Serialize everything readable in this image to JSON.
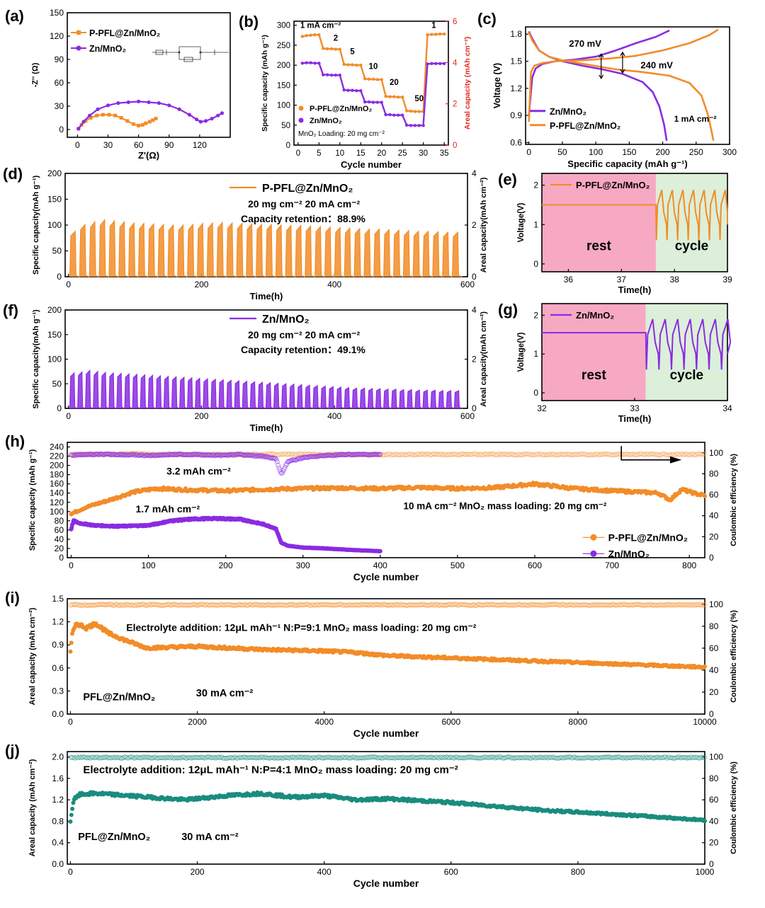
{
  "colors": {
    "orange": "#f28c28",
    "purple": "#8a2be2",
    "teal": "#1a8c7e",
    "red": "#e0271f",
    "rest": "#f7a9c3",
    "cycle": "#dcefd9",
    "axis": "#000000"
  },
  "chart_data": [
    {
      "id": "a",
      "label": "(a)",
      "type": "line",
      "xlabel": "Z'(Ω)",
      "ylabel": "-Z'' (Ω)",
      "xlim": [
        -10,
        150
      ],
      "ylim": [
        -10,
        150
      ],
      "xticks": [
        0,
        30,
        60,
        90,
        120
      ],
      "yticks": [
        0,
        30,
        60,
        90,
        120,
        150
      ],
      "legend": [
        "P-PFL@Zn/MnO₂",
        "Zn/MnO₂"
      ],
      "inset": "equivalent circuit: Rs, CPE, Rct, Wo",
      "series": [
        {
          "name": "P-PFL@Zn/MnO₂",
          "color": "orange",
          "marker": "square",
          "x": [
            1,
            4,
            8,
            13,
            19,
            25,
            31,
            37,
            43,
            49,
            55,
            60,
            64,
            67,
            71,
            74,
            77
          ],
          "y": [
            1,
            6,
            11,
            15,
            18,
            19,
            19,
            18,
            15,
            11,
            7,
            5,
            6,
            8,
            10,
            12,
            14
          ]
        },
        {
          "name": "Zn/MnO₂",
          "color": "purple",
          "marker": "circle",
          "x": [
            1,
            6,
            12,
            20,
            30,
            40,
            50,
            60,
            70,
            80,
            90,
            100,
            110,
            117,
            121,
            126,
            132,
            138,
            142
          ],
          "y": [
            1,
            10,
            18,
            26,
            31,
            34,
            35,
            36,
            35,
            34,
            31,
            26,
            19,
            13,
            10,
            11,
            14,
            18,
            21
          ]
        }
      ]
    },
    {
      "id": "b",
      "label": "(b)",
      "type": "line",
      "xlabel": "Cycle number",
      "ylabel": "Specific capacity (mAh g⁻¹)",
      "ylabel_right": "Areal capacity (mAh cm⁻²)",
      "xlim": [
        -1,
        36
      ],
      "ylim": [
        0,
        310
      ],
      "ylim_right": [
        0,
        6
      ],
      "xticks": [
        0,
        5,
        10,
        15,
        20,
        25,
        30,
        35
      ],
      "yticks": [
        0,
        50,
        100,
        150,
        200,
        250,
        300
      ],
      "yticks_right": [
        0,
        2,
        4,
        6
      ],
      "rate_labels": [
        "1 mA cm⁻²",
        "2",
        "5",
        "10",
        "20",
        "50",
        "1"
      ],
      "legend": [
        "P-PFL@Zn/MnO₂",
        "Zn/MnO₂"
      ],
      "note": "MnO₂ Loading: 20 mg cm⁻²",
      "series": [
        {
          "name": "P-PFL@Zn/MnO₂",
          "color": "orange",
          "y": [
            272,
            274,
            275,
            276,
            276,
            242,
            241,
            241,
            240,
            240,
            202,
            201,
            201,
            200,
            200,
            166,
            165,
            165,
            164,
            164,
            122,
            121,
            121,
            120,
            120,
            86,
            85,
            84,
            84,
            84,
            276,
            277,
            277,
            278,
            278
          ]
        },
        {
          "name": "Zn/MnO₂",
          "color": "purple",
          "y": [
            205,
            206,
            206,
            205,
            205,
            176,
            176,
            175,
            175,
            175,
            138,
            137,
            137,
            136,
            136,
            108,
            108,
            107,
            107,
            107,
            76,
            76,
            75,
            75,
            75,
            50,
            49,
            49,
            49,
            49,
            203,
            204,
            204,
            204,
            204
          ]
        }
      ]
    },
    {
      "id": "c",
      "label": "(c)",
      "type": "line",
      "xlabel": "Specific capacity (mAh g⁻¹)",
      "ylabel": "Voltage (V)",
      "xlim": [
        -5,
        300
      ],
      "ylim": [
        0.58,
        1.88
      ],
      "xticks": [
        0,
        50,
        100,
        150,
        200,
        250,
        300
      ],
      "yticks": [
        0.6,
        0.9,
        1.2,
        1.5,
        1.8
      ],
      "annotations": [
        "270 mV",
        "240 mV",
        "1 mA cm⁻²"
      ],
      "legend": [
        "Zn/MnO₂",
        "P-PFL@Zn/MnO₂"
      ],
      "series": [
        {
          "name": "Zn/MnO₂ discharge",
          "color": "purple",
          "x": [
            0,
            5,
            15,
            30,
            50,
            80,
            110,
            140,
            170,
            185,
            195,
            202,
            206
          ],
          "y": [
            1.83,
            1.75,
            1.62,
            1.55,
            1.5,
            1.45,
            1.41,
            1.36,
            1.27,
            1.16,
            1.0,
            0.8,
            0.62
          ]
        },
        {
          "name": "Zn/MnO₂ charge",
          "color": "purple",
          "x": [
            0,
            5,
            10,
            20,
            40,
            70,
            100,
            130,
            160,
            190,
            210
          ],
          "y": [
            0.9,
            1.32,
            1.42,
            1.47,
            1.5,
            1.52,
            1.55,
            1.62,
            1.7,
            1.77,
            1.84
          ]
        },
        {
          "name": "P-PFL@Zn/MnO₂ discharge",
          "color": "orange",
          "x": [
            0,
            5,
            15,
            30,
            50,
            90,
            130,
            170,
            210,
            240,
            258,
            268,
            276
          ],
          "y": [
            1.82,
            1.73,
            1.62,
            1.55,
            1.51,
            1.46,
            1.41,
            1.38,
            1.34,
            1.26,
            1.12,
            0.9,
            0.62
          ]
        },
        {
          "name": "P-PFL@Zn/MnO₂ charge",
          "color": "orange",
          "x": [
            0,
            3,
            8,
            20,
            40,
            80,
            120,
            160,
            200,
            240,
            270,
            283
          ],
          "y": [
            0.83,
            1.38,
            1.45,
            1.48,
            1.5,
            1.51,
            1.53,
            1.56,
            1.62,
            1.7,
            1.79,
            1.85
          ]
        }
      ]
    },
    {
      "id": "d",
      "label": "(d)",
      "type": "line",
      "xlabel": "Time(h)",
      "ylabel": "Specific capacity(mAh g⁻¹)",
      "ylabel_right": "Areal capacity(mAh cm⁻²)",
      "xlim": [
        -5,
        600
      ],
      "ylim": [
        0,
        200
      ],
      "ylim_right": [
        0,
        4
      ],
      "xticks": [
        0,
        200,
        400,
        600
      ],
      "yticks": [
        0,
        50,
        100,
        150,
        200
      ],
      "yticks_right": [
        0,
        2,
        4
      ],
      "legend": [
        "P-PFL@Zn/MnO₂"
      ],
      "text": [
        "20 mg cm⁻²   20 mA cm⁻²",
        "Capacity retention：88.9%"
      ],
      "series": [
        {
          "name": "P-PFL@Zn/MnO₂",
          "color": "orange",
          "cycle_period_h": 15,
          "peaks": [
            88,
            101,
            106,
            110,
            108,
            106,
            104,
            103,
            102,
            101,
            100,
            100,
            101,
            103,
            104,
            105,
            104,
            103,
            102,
            101,
            101,
            100,
            99,
            99,
            98,
            97,
            96,
            95,
            94,
            93,
            92,
            92,
            91,
            90,
            89,
            88,
            88,
            87,
            86,
            86
          ]
        }
      ]
    },
    {
      "id": "e",
      "label": "(e)",
      "type": "line",
      "xlabel": "Time(h)",
      "ylabel": "Voltage(V)",
      "xlim": [
        35.5,
        39
      ],
      "ylim": [
        -0.2,
        2.3
      ],
      "xticks": [
        36,
        37,
        38,
        39
      ],
      "yticks": [
        0,
        1,
        2
      ],
      "regions": [
        {
          "label": "rest",
          "from": 35.5,
          "to": 37.65
        },
        {
          "label": "cycle",
          "from": 37.65,
          "to": 39
        }
      ],
      "legend": [
        "P-PFL@Zn/MnO₂"
      ],
      "series": [
        {
          "name": "P-PFL@Zn/MnO₂",
          "color": "orange",
          "rest_voltage": 1.5,
          "cycle_start": 37.65,
          "cycle_period_h": 0.2,
          "v_max": 1.88,
          "v_min": 0.6
        }
      ]
    },
    {
      "id": "f",
      "label": "(f)",
      "type": "line",
      "xlabel": "Time(h)",
      "ylabel": "Specific capacity(mAh g⁻¹)",
      "ylabel_right": "Areal capacity(mAh cm⁻²)",
      "xlim": [
        -5,
        600
      ],
      "ylim": [
        0,
        200
      ],
      "ylim_right": [
        0,
        4
      ],
      "xticks": [
        0,
        200,
        400,
        600
      ],
      "yticks": [
        0,
        50,
        100,
        150,
        200
      ],
      "yticks_right": [
        0,
        2,
        4
      ],
      "legend": [
        "Zn/MnO₂"
      ],
      "text": [
        "20 mg cm⁻²   20 mA cm⁻²",
        "Capacity retention：49.1%"
      ],
      "series": [
        {
          "name": "Zn/MnO₂",
          "color": "purple",
          "cycle_period_h": 12,
          "peaks": [
            72,
            74,
            77,
            75,
            73,
            72,
            71,
            70,
            69,
            68,
            67,
            66,
            65,
            64,
            63,
            62,
            61,
            60,
            59,
            58,
            57,
            56,
            55,
            54,
            53,
            52,
            51,
            50,
            49,
            48,
            47,
            46,
            45,
            44,
            43,
            42,
            41,
            41,
            40,
            40,
            39,
            39,
            38,
            38,
            37,
            37,
            37,
            36,
            36,
            36
          ]
        }
      ]
    },
    {
      "id": "g",
      "label": "(g)",
      "type": "line",
      "xlabel": "Time(h)",
      "ylabel": "Voltage(V)",
      "xlim": [
        32,
        34
      ],
      "ylim": [
        -0.2,
        2.3
      ],
      "xticks": [
        32,
        33,
        34
      ],
      "yticks": [
        0,
        1,
        2
      ],
      "regions": [
        {
          "label": "rest",
          "from": 32,
          "to": 33.12
        },
        {
          "label": "cycle",
          "from": 33.12,
          "to": 34
        }
      ],
      "legend": [
        "Zn/MnO₂"
      ],
      "series": [
        {
          "name": "Zn/MnO₂",
          "color": "purple",
          "rest_voltage": 1.55,
          "cycle_start": 33.12,
          "cycle_period_h": 0.135,
          "v_max": 1.9,
          "v_min": 0.6
        }
      ]
    },
    {
      "id": "h",
      "label": "(h)",
      "type": "scatter",
      "xlabel": "Cycle number",
      "ylabel": "Specific capacity (mAh g⁻¹)",
      "ylabel_right": "Coulombic efficiency (%)",
      "xlim": [
        -5,
        820
      ],
      "ylim": [
        0,
        250
      ],
      "ylim_right": [
        0,
        110
      ],
      "xticks": [
        0,
        100,
        200,
        300,
        400,
        500,
        600,
        700,
        800
      ],
      "yticks": [
        0,
        20,
        40,
        60,
        80,
        100,
        120,
        140,
        160,
        180,
        200,
        220,
        240
      ],
      "yticks_right": [
        0,
        20,
        40,
        60,
        80,
        100
      ],
      "annotations": [
        "3.2 mAh cm⁻²",
        "1.7 mAh cm⁻²",
        "10 mA cm⁻²   MnO₂ mass loading: 20 mg cm⁻²"
      ],
      "legend": [
        "P-PFL@Zn/MnO₂",
        "Zn/MnO₂"
      ],
      "series": [
        {
          "name": "P-PFL@Zn/MnO₂",
          "color": "orange",
          "x": [
            0,
            20,
            50,
            80,
            110,
            150,
            200,
            250,
            300,
            350,
            400,
            450,
            500,
            550,
            600,
            650,
            700,
            740,
            760,
            775,
            790,
            810,
            820
          ],
          "y": [
            95,
            110,
            125,
            142,
            150,
            147,
            145,
            148,
            150,
            151,
            150,
            152,
            150,
            152,
            160,
            150,
            145,
            142,
            140,
            125,
            148,
            138,
            135
          ],
          "ce": [
            99,
            99,
            99,
            100,
            99,
            99,
            99,
            99,
            99,
            99,
            99,
            99,
            99,
            99,
            99,
            99,
            99,
            99,
            99,
            99,
            99,
            99,
            99
          ]
        },
        {
          "name": "Zn/MnO₂",
          "color": "purple",
          "x": [
            0,
            3,
            10,
            30,
            60,
            100,
            130,
            160,
            190,
            220,
            250,
            265,
            272,
            280,
            300,
            330,
            360,
            400
          ],
          "y": [
            62,
            80,
            75,
            70,
            68,
            70,
            80,
            84,
            85,
            83,
            72,
            63,
            32,
            26,
            22,
            20,
            17,
            14
          ],
          "ce": [
            99,
            98,
            99,
            99,
            99,
            98,
            99,
            99,
            98,
            99,
            97,
            95,
            80,
            92,
            96,
            98,
            99,
            99
          ]
        }
      ]
    },
    {
      "id": "i",
      "label": "(i)",
      "type": "scatter",
      "xlabel": "Cycle number",
      "ylabel": "Areal capacity  (mAh cm⁻²)",
      "ylabel_right": "Coulombic efficiency (%)",
      "xlim": [
        -50,
        10000
      ],
      "ylim": [
        0,
        1.5
      ],
      "ylim_right": [
        0,
        105
      ],
      "xticks": [
        0,
        2000,
        4000,
        6000,
        8000,
        10000
      ],
      "yticks": [
        0,
        0.3,
        0.6,
        0.9,
        1.2,
        1.5
      ],
      "yticks_right": [
        0,
        20,
        40,
        60,
        80,
        100
      ],
      "annotations": [
        "Electrolyte addition: 12μL mAh⁻¹    N:P=9:1    MnO₂ mass loading: 20 mg cm⁻²",
        "PFL@Zn/MnO₂",
        "30 mA cm⁻²"
      ],
      "series": [
        {
          "name": "PFL@Zn/MnO₂",
          "color": "orange",
          "x": [
            0,
            30,
            100,
            250,
            400,
            600,
            900,
            1200,
            1600,
            2000,
            2500,
            3000,
            3500,
            4000,
            4500,
            5000,
            6000,
            7000,
            8000,
            9000,
            10000
          ],
          "y": [
            0.82,
            1.05,
            1.18,
            1.12,
            1.18,
            1.05,
            0.95,
            0.86,
            0.87,
            0.88,
            0.86,
            0.84,
            0.83,
            0.82,
            0.8,
            0.76,
            0.73,
            0.7,
            0.67,
            0.64,
            0.61
          ],
          "ce": [
            100
          ]
        }
      ]
    },
    {
      "id": "j",
      "label": "(j)",
      "type": "scatter",
      "xlabel": "Cycle number",
      "ylabel": "Areal capacity  (mAh cm⁻²)",
      "ylabel_right": "Coulombic efficiency (%)",
      "xlim": [
        -5,
        1000
      ],
      "ylim": [
        0,
        2.1
      ],
      "ylim_right": [
        0,
        105
      ],
      "xticks": [
        0,
        200,
        400,
        600,
        800,
        1000
      ],
      "yticks": [
        0,
        0.4,
        0.8,
        1.2,
        1.6,
        2.0
      ],
      "yticks_right": [
        0,
        20,
        40,
        60,
        80,
        100
      ],
      "annotations": [
        "Electrolyte addition: 12μL mAh⁻¹    N:P=4:1    MnO₂ mass loading: 20 mg cm⁻²",
        "PFL@Zn/MnO₂",
        "30 mA cm⁻²"
      ],
      "series": [
        {
          "name": "PFL@Zn/MnO₂",
          "color": "teal",
          "x": [
            0,
            5,
            15,
            40,
            100,
            180,
            250,
            300,
            350,
            400,
            450,
            500,
            600,
            650,
            700,
            750,
            800,
            900,
            1000
          ],
          "y": [
            0.8,
            1.2,
            1.3,
            1.32,
            1.27,
            1.2,
            1.28,
            1.32,
            1.25,
            1.28,
            1.2,
            1.22,
            1.15,
            1.1,
            1.05,
            1.0,
            0.97,
            0.9,
            0.82
          ],
          "ce": [
            100
          ]
        }
      ]
    }
  ]
}
